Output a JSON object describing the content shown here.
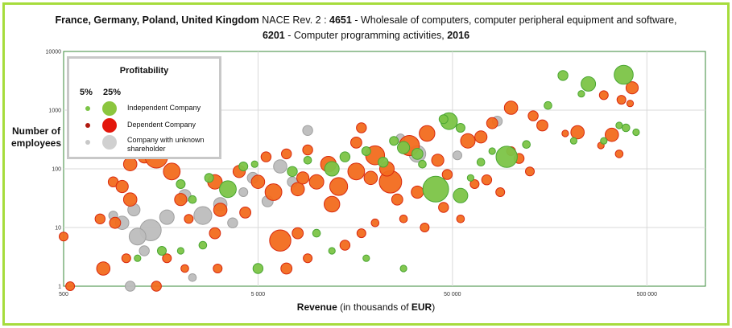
{
  "title": {
    "countries": "France, Germany, Poland, United Kingdom",
    "nace_label": " NACE Rev. 2 : ",
    "code1": "4651",
    "desc1": " - Wholesale of computers, computer peripheral equipment and software,",
    "code2": "6201",
    "desc2": " - Computer programming activities,  ",
    "year": "2016"
  },
  "axes": {
    "ylabel": "Number of employees",
    "xlabel_prefix": "Revenue",
    "xlabel_mid": " (in thousands of ",
    "xlabel_unit": "EUR",
    "xlabel_suffix": ")"
  },
  "legend": {
    "title": "Profitability",
    "size_small": "5%",
    "size_large": "25%",
    "items": [
      {
        "label": "Independent Company",
        "color": "#8cc63f"
      },
      {
        "label": "Dependent Company",
        "color": "#e3160b"
      },
      {
        "label": "Company with unknown shareholder",
        "color": "#c8c8c8"
      }
    ]
  },
  "colors": {
    "independent_fill": "#7cc447",
    "independent_stroke": "#4aa632",
    "dependent_fill": "#f26b1d",
    "dependent_stroke": "#d82a10",
    "unknown_fill": "#bdbdbd",
    "unknown_stroke": "#a0a0a0",
    "border": "#a6dc3c",
    "plot_border": "#3a8a3a"
  },
  "chart_data": {
    "type": "scatter",
    "title": "France, Germany, Poland, United Kingdom NACE Rev. 2 : 4651 - Wholesale of computers, computer peripheral equipment and software, 6201 - Computer programming activities, 2016",
    "xlabel": "Revenue (in thousands of EUR)",
    "ylabel": "Number of employees",
    "xscale": "log",
    "yscale": "log",
    "xlim": [
      500,
      1000000
    ],
    "ylim": [
      1,
      10000
    ],
    "x_ticks": [
      "500",
      "5 000",
      "50 000",
      "500 000"
    ],
    "y_ticks": [
      "1",
      "10",
      "100",
      "1000",
      "10000"
    ],
    "grid": true,
    "legend_position": "top-left",
    "size_encodes": "Profitability (%)",
    "series": [
      {
        "name": "Independent Company",
        "points": [
          {
            "x": 380000,
            "y": 4000,
            "p": 14
          },
          {
            "x": 250000,
            "y": 2800,
            "p": 10
          },
          {
            "x": 185000,
            "y": 3900,
            "p": 6
          },
          {
            "x": 155000,
            "y": 1200,
            "p": 4
          },
          {
            "x": 230000,
            "y": 1900,
            "p": 3
          },
          {
            "x": 48000,
            "y": 650,
            "p": 12
          },
          {
            "x": 55000,
            "y": 500,
            "p": 5
          },
          {
            "x": 95000,
            "y": 160,
            "p": 16
          },
          {
            "x": 41000,
            "y": 45,
            "p": 20
          },
          {
            "x": 55000,
            "y": 35,
            "p": 10
          },
          {
            "x": 28000,
            "y": 230,
            "p": 8
          },
          {
            "x": 33000,
            "y": 180,
            "p": 7
          },
          {
            "x": 22000,
            "y": 130,
            "p": 6
          },
          {
            "x": 18000,
            "y": 200,
            "p": 5
          },
          {
            "x": 14000,
            "y": 160,
            "p": 6
          },
          {
            "x": 12000,
            "y": 100,
            "p": 10
          },
          {
            "x": 9000,
            "y": 140,
            "p": 4
          },
          {
            "x": 7500,
            "y": 90,
            "p": 6
          },
          {
            "x": 4200,
            "y": 110,
            "p": 5
          },
          {
            "x": 4800,
            "y": 120,
            "p": 3
          },
          {
            "x": 3500,
            "y": 45,
            "p": 12
          },
          {
            "x": 2800,
            "y": 70,
            "p": 5
          },
          {
            "x": 2300,
            "y": 30,
            "p": 4
          },
          {
            "x": 2000,
            "y": 55,
            "p": 5
          },
          {
            "x": 5000,
            "y": 2,
            "p": 6
          },
          {
            "x": 2600,
            "y": 5,
            "p": 4
          },
          {
            "x": 2000,
            "y": 4,
            "p": 3
          },
          {
            "x": 1200,
            "y": 3,
            "p": 3
          },
          {
            "x": 1600,
            "y": 4,
            "p": 5
          },
          {
            "x": 10000,
            "y": 8,
            "p": 4
          },
          {
            "x": 12000,
            "y": 4,
            "p": 3
          },
          {
            "x": 18000,
            "y": 3,
            "p": 3
          },
          {
            "x": 28000,
            "y": 2,
            "p": 3
          },
          {
            "x": 62000,
            "y": 70,
            "p": 3
          },
          {
            "x": 360000,
            "y": 550,
            "p": 3
          },
          {
            "x": 390000,
            "y": 500,
            "p": 4
          },
          {
            "x": 440000,
            "y": 420,
            "p": 3
          },
          {
            "x": 300000,
            "y": 300,
            "p": 3
          },
          {
            "x": 210000,
            "y": 300,
            "p": 3
          },
          {
            "x": 120000,
            "y": 260,
            "p": 4
          },
          {
            "x": 70000,
            "y": 130,
            "p": 4
          },
          {
            "x": 80000,
            "y": 200,
            "p": 3
          },
          {
            "x": 35000,
            "y": 120,
            "p": 4
          },
          {
            "x": 25000,
            "y": 300,
            "p": 5
          },
          {
            "x": 45000,
            "y": 700,
            "p": 5
          }
        ]
      },
      {
        "name": "Dependent Company",
        "points": [
          {
            "x": 420000,
            "y": 2400,
            "p": 8
          },
          {
            "x": 370000,
            "y": 1500,
            "p": 5
          },
          {
            "x": 410000,
            "y": 1300,
            "p": 3
          },
          {
            "x": 300000,
            "y": 1800,
            "p": 5
          },
          {
            "x": 100000,
            "y": 1100,
            "p": 9
          },
          {
            "x": 130000,
            "y": 800,
            "p": 6
          },
          {
            "x": 80000,
            "y": 600,
            "p": 7
          },
          {
            "x": 145000,
            "y": 550,
            "p": 7
          },
          {
            "x": 330000,
            "y": 380,
            "p": 9
          },
          {
            "x": 360000,
            "y": 180,
            "p": 4
          },
          {
            "x": 290000,
            "y": 250,
            "p": 3
          },
          {
            "x": 220000,
            "y": 420,
            "p": 9
          },
          {
            "x": 190000,
            "y": 400,
            "p": 3
          },
          {
            "x": 60000,
            "y": 300,
            "p": 10
          },
          {
            "x": 70000,
            "y": 350,
            "p": 8
          },
          {
            "x": 37000,
            "y": 400,
            "p": 11
          },
          {
            "x": 30000,
            "y": 250,
            "p": 15
          },
          {
            "x": 20000,
            "y": 170,
            "p": 14
          },
          {
            "x": 16000,
            "y": 90,
            "p": 12
          },
          {
            "x": 24000,
            "y": 60,
            "p": 17
          },
          {
            "x": 13000,
            "y": 50,
            "p": 13
          },
          {
            "x": 10000,
            "y": 60,
            "p": 10
          },
          {
            "x": 8000,
            "y": 45,
            "p": 9
          },
          {
            "x": 6000,
            "y": 40,
            "p": 12
          },
          {
            "x": 5000,
            "y": 60,
            "p": 9
          },
          {
            "x": 6500,
            "y": 6,
            "p": 16
          },
          {
            "x": 8000,
            "y": 8,
            "p": 7
          },
          {
            "x": 4300,
            "y": 18,
            "p": 7
          },
          {
            "x": 3200,
            "y": 20,
            "p": 9
          },
          {
            "x": 3000,
            "y": 8,
            "p": 7
          },
          {
            "x": 2200,
            "y": 14,
            "p": 5
          },
          {
            "x": 1800,
            "y": 90,
            "p": 12
          },
          {
            "x": 1300,
            "y": 160,
            "p": 8
          },
          {
            "x": 900,
            "y": 60,
            "p": 6
          },
          {
            "x": 1100,
            "y": 30,
            "p": 9
          },
          {
            "x": 920,
            "y": 12,
            "p": 7
          },
          {
            "x": 770,
            "y": 14,
            "p": 6
          },
          {
            "x": 800,
            "y": 2,
            "p": 9
          },
          {
            "x": 1050,
            "y": 3,
            "p": 5
          },
          {
            "x": 1500,
            "y": 1,
            "p": 6
          },
          {
            "x": 1700,
            "y": 3,
            "p": 5
          },
          {
            "x": 2100,
            "y": 2,
            "p": 4
          },
          {
            "x": 500,
            "y": 7,
            "p": 5
          },
          {
            "x": 540,
            "y": 1,
            "p": 5
          },
          {
            "x": 3100,
            "y": 2,
            "p": 5
          },
          {
            "x": 7000,
            "y": 2,
            "p": 7
          },
          {
            "x": 9000,
            "y": 3,
            "p": 5
          },
          {
            "x": 14000,
            "y": 5,
            "p": 6
          },
          {
            "x": 17000,
            "y": 8,
            "p": 5
          },
          {
            "x": 20000,
            "y": 12,
            "p": 4
          },
          {
            "x": 28000,
            "y": 14,
            "p": 4
          },
          {
            "x": 36000,
            "y": 10,
            "p": 5
          },
          {
            "x": 45000,
            "y": 22,
            "p": 6
          },
          {
            "x": 55000,
            "y": 14,
            "p": 4
          },
          {
            "x": 65000,
            "y": 55,
            "p": 5
          },
          {
            "x": 75000,
            "y": 65,
            "p": 6
          },
          {
            "x": 88000,
            "y": 40,
            "p": 5
          },
          {
            "x": 110000,
            "y": 150,
            "p": 6
          },
          {
            "x": 125000,
            "y": 90,
            "p": 5
          },
          {
            "x": 100000,
            "y": 200,
            "p": 5
          },
          {
            "x": 42000,
            "y": 140,
            "p": 8
          },
          {
            "x": 11500,
            "y": 120,
            "p": 11
          },
          {
            "x": 9000,
            "y": 210,
            "p": 6
          },
          {
            "x": 16000,
            "y": 280,
            "p": 7
          },
          {
            "x": 17000,
            "y": 500,
            "p": 6
          },
          {
            "x": 1500,
            "y": 160,
            "p": 17
          },
          {
            "x": 1100,
            "y": 120,
            "p": 9
          },
          {
            "x": 1000,
            "y": 50,
            "p": 8
          },
          {
            "x": 5500,
            "y": 160,
            "p": 6
          },
          {
            "x": 7000,
            "y": 180,
            "p": 6
          },
          {
            "x": 4000,
            "y": 90,
            "p": 8
          },
          {
            "x": 3000,
            "y": 60,
            "p": 10
          },
          {
            "x": 2000,
            "y": 30,
            "p": 8
          },
          {
            "x": 12000,
            "y": 25,
            "p": 11
          },
          {
            "x": 26000,
            "y": 30,
            "p": 7
          },
          {
            "x": 33000,
            "y": 40,
            "p": 8
          },
          {
            "x": 47000,
            "y": 80,
            "p": 6
          },
          {
            "x": 23000,
            "y": 100,
            "p": 10
          },
          {
            "x": 19000,
            "y": 70,
            "p": 9
          },
          {
            "x": 8500,
            "y": 70,
            "p": 8
          }
        ]
      },
      {
        "name": "Company with unknown shareholder",
        "points": [
          {
            "x": 85000,
            "y": 650,
            "p": 6
          },
          {
            "x": 53000,
            "y": 170,
            "p": 5
          },
          {
            "x": 33000,
            "y": 180,
            "p": 12
          },
          {
            "x": 27000,
            "y": 330,
            "p": 5
          },
          {
            "x": 9000,
            "y": 450,
            "p": 6
          },
          {
            "x": 6500,
            "y": 110,
            "p": 9
          },
          {
            "x": 4700,
            "y": 70,
            "p": 7
          },
          {
            "x": 4200,
            "y": 40,
            "p": 5
          },
          {
            "x": 3200,
            "y": 25,
            "p": 9
          },
          {
            "x": 2600,
            "y": 16,
            "p": 13
          },
          {
            "x": 2100,
            "y": 35,
            "p": 8
          },
          {
            "x": 1700,
            "y": 15,
            "p": 10
          },
          {
            "x": 1400,
            "y": 9,
            "p": 16
          },
          {
            "x": 1200,
            "y": 7,
            "p": 12
          },
          {
            "x": 1000,
            "y": 12,
            "p": 9
          },
          {
            "x": 1150,
            "y": 20,
            "p": 8
          },
          {
            "x": 900,
            "y": 16,
            "p": 5
          },
          {
            "x": 1300,
            "y": 4,
            "p": 6
          },
          {
            "x": 1100,
            "y": 1,
            "p": 6
          },
          {
            "x": 2300,
            "y": 1.4,
            "p": 4
          },
          {
            "x": 3700,
            "y": 12,
            "p": 6
          },
          {
            "x": 5600,
            "y": 28,
            "p": 7
          },
          {
            "x": 7500,
            "y": 60,
            "p": 6
          }
        ]
      }
    ]
  }
}
